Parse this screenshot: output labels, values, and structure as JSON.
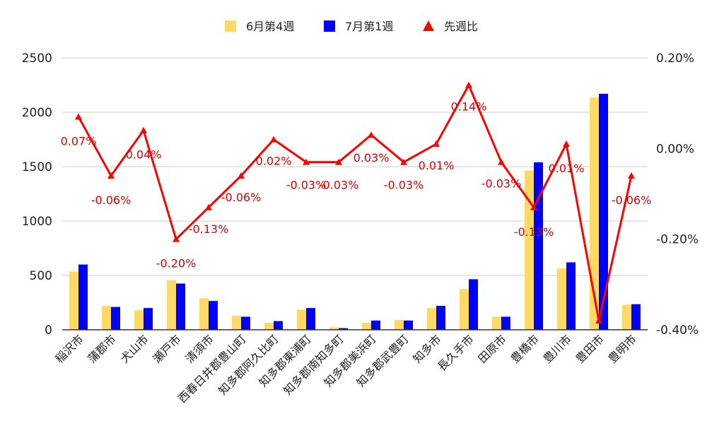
{
  "chart_data": {
    "type": "bar",
    "categories": [
      "稲沢市",
      "蒲郡市",
      "犬山市",
      "瀬戸市",
      "清須市",
      "西春日井郡豊山町",
      "知多郡阿久比町",
      "知多郡東浦町",
      "知多郡南知多町",
      "知多郡美浜町",
      "知多郡武豊町",
      "知多市",
      "長久手市",
      "田原市",
      "豊橋市",
      "豊川市",
      "豊田市",
      "豊明市"
    ],
    "series": [
      {
        "name": "6月第4週",
        "kind": "bar",
        "axis": "left",
        "color": "#FFD966",
        "values": [
          535,
          220,
          180,
          455,
          290,
          130,
          65,
          185,
          22,
          65,
          90,
          200,
          375,
          120,
          1465,
          565,
          2135,
          230
        ]
      },
      {
        "name": "7月第1週",
        "kind": "bar",
        "axis": "left",
        "color": "#0000FF",
        "values": [
          600,
          210,
          200,
          425,
          265,
          120,
          80,
          200,
          15,
          85,
          85,
          220,
          465,
          120,
          1540,
          620,
          2170,
          235
        ]
      },
      {
        "name": "先週比",
        "kind": "line",
        "axis": "right",
        "color": "#FF0000",
        "values": [
          0.07,
          -0.06,
          0.04,
          -0.2,
          -0.13,
          -0.06,
          0.02,
          -0.03,
          -0.03,
          0.03,
          -0.03,
          0.01,
          0.14,
          -0.03,
          -0.13,
          0.01,
          -0.38,
          -0.06
        ],
        "labels": [
          "0.07%",
          "-0.06%",
          "0.04%",
          "-0.20%",
          "-0.13%",
          "-0.06%",
          "0.02%",
          "-0.03%",
          "-0.03%",
          "0.03%",
          "-0.03%",
          "0.01%",
          "0.14%",
          "-0.03%",
          "-0.13%",
          "0.01%",
          "",
          "-0.06%"
        ]
      }
    ],
    "ylim": [
      0,
      2500
    ],
    "y_ticks": [
      "0",
      "500",
      "1000",
      "1500",
      "2000",
      "2500"
    ],
    "y_tick_values": [
      0,
      500,
      1000,
      1500,
      2000,
      2500
    ],
    "y2lim": [
      -0.4,
      0.2
    ],
    "y2_ticks": [
      "-0.40%",
      "-0.20%",
      "0.00%",
      "0.20%"
    ],
    "y2_tick_values": [
      -0.4,
      -0.2,
      0.0,
      0.2
    ],
    "grid": true,
    "legend_position": "top-center",
    "title": "",
    "xlabel": "",
    "ylabel": ""
  }
}
